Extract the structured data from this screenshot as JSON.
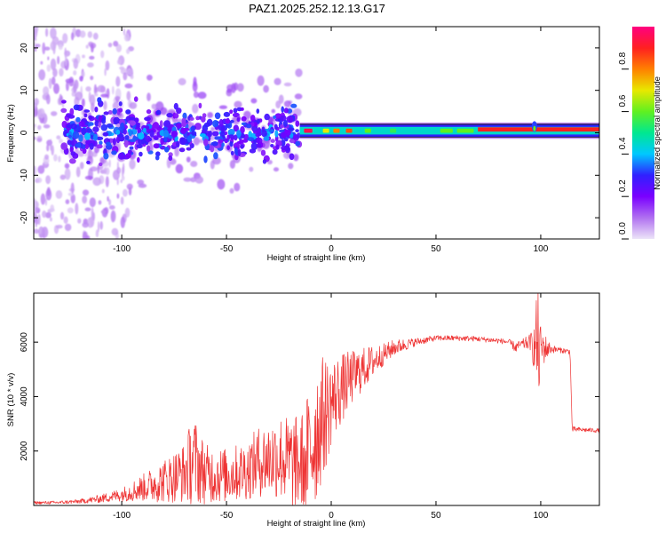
{
  "title": "PAZ1.2025.252.12.13.G17",
  "chart_data": [
    {
      "type": "heatmap",
      "xlabel": "Height of straight line (km)",
      "ylabel": "Frequency (Hz)",
      "xlim": [
        -142,
        128
      ],
      "ylim": [
        -25,
        25
      ],
      "xticks": [
        -100,
        -50,
        0,
        50,
        100
      ],
      "yticks": [
        -20,
        -10,
        0,
        10,
        20
      ],
      "colorbar": {
        "label": "Normalized spectral amplitude",
        "range": [
          0,
          1
        ],
        "ticks": [
          "0.0",
          "0.2",
          "0.4",
          "0.6",
          "0.8"
        ],
        "colors": [
          "#ece4f8",
          "#b070f0",
          "#7a00ff",
          "#3020ff",
          "#00c8ff",
          "#00e890",
          "#60f020",
          "#e8e800",
          "#ff8000",
          "#ff2020",
          "#ff0080"
        ]
      },
      "features": [
        {
          "name": "diffuse scatter",
          "x_range": [
            -142,
            -95
          ],
          "freq_range": [
            -25,
            25
          ],
          "amplitude": 0.05
        },
        {
          "name": "broad noisy band",
          "x_range": [
            -128,
            -15
          ],
          "freq_range": [
            -8,
            8
          ],
          "amplitude": 0.2
        },
        {
          "name": "narrow carrier line",
          "x_range": [
            -15,
            128
          ],
          "freq_center": 0.5,
          "freq_halfwidth": 1.5,
          "amplitude": 0.45
        },
        {
          "name": "strong carrier core",
          "x_range": [
            70,
            128
          ],
          "freq_center": 0.8,
          "amplitude": 0.9
        }
      ]
    },
    {
      "type": "line",
      "xlabel": "Height of straight line (km)",
      "ylabel": "SNR (10 * v/v)",
      "xlim": [
        -142,
        128
      ],
      "ylim": [
        0,
        7800
      ],
      "xticks": [
        -100,
        -50,
        0,
        50,
        100
      ],
      "yticks": [
        2000,
        4000,
        6000
      ],
      "color": "#ee3333",
      "series": [
        {
          "name": "SNR",
          "x": [
            -142,
            -130,
            -120,
            -110,
            -100,
            -90,
            -80,
            -70,
            -66,
            -60,
            -50,
            -40,
            -35,
            -30,
            -25,
            -20,
            -15,
            -10,
            -8,
            -5,
            -2,
            0,
            5,
            10,
            15,
            20,
            25,
            30,
            40,
            50,
            60,
            70,
            80,
            85,
            88,
            90,
            95,
            97,
            98,
            99,
            100,
            105,
            110,
            114,
            115,
            120,
            128
          ],
          "mean": [
            100,
            110,
            150,
            250,
            400,
            650,
            900,
            1200,
            1700,
            1150,
            1100,
            1300,
            1600,
            1700,
            1800,
            1600,
            1500,
            2000,
            2600,
            3100,
            3500,
            3800,
            4300,
            4700,
            5000,
            5300,
            5550,
            5800,
            6000,
            6150,
            6150,
            6120,
            6050,
            6000,
            5800,
            5900,
            6000,
            5800,
            6000,
            5700,
            5800,
            5750,
            5700,
            5650,
            2800,
            2780,
            2750
          ],
          "noise": [
            50,
            60,
            80,
            150,
            250,
            500,
            800,
            1100,
            1700,
            1100,
            1000,
            1100,
            1300,
            1400,
            1600,
            1700,
            1800,
            2400,
            2800,
            2400,
            2000,
            1600,
            1300,
            1000,
            800,
            600,
            400,
            300,
            150,
            100,
            100,
            100,
            100,
            100,
            200,
            150,
            300,
            900,
            1800,
            2200,
            800,
            150,
            100,
            100,
            100,
            80,
            80
          ]
        }
      ]
    }
  ]
}
